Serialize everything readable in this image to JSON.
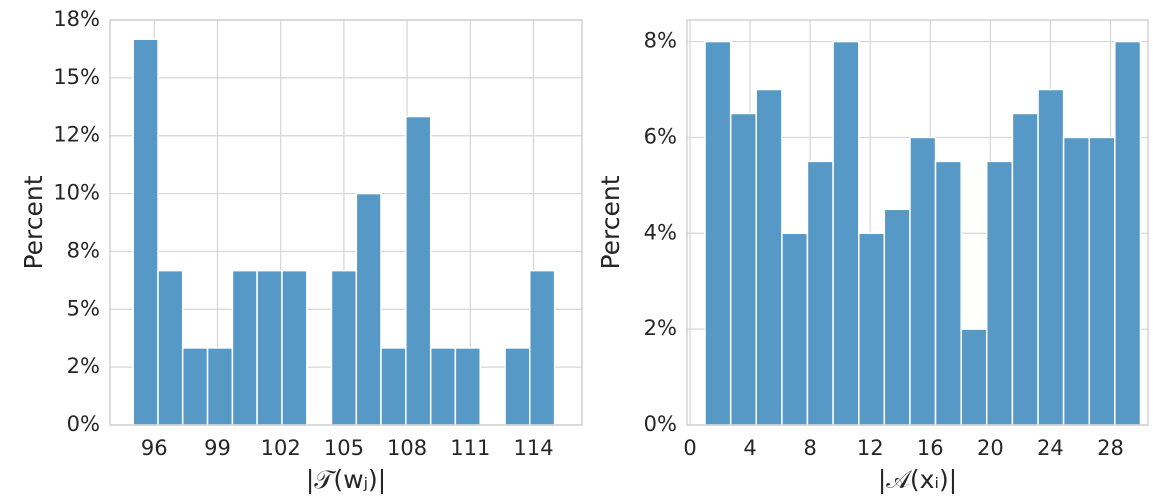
{
  "chart_data": [
    {
      "type": "histogram",
      "xlabel": "|𝒯(wⱼ)|",
      "ylabel": "Percent",
      "color": "#5799c6",
      "grid": true,
      "bins": [
        95,
        96.18,
        97.35,
        98.53,
        99.71,
        100.88,
        102.06,
        103.24,
        104.41,
        105.59,
        106.76,
        107.94,
        109.12,
        110.29,
        111.47,
        112.65,
        113.82,
        115
      ],
      "values": [
        16.67,
        6.67,
        3.33,
        3.33,
        6.67,
        6.67,
        6.67,
        0,
        6.67,
        10,
        3.33,
        13.33,
        3.33,
        3.33,
        0,
        3.33,
        6.67
      ],
      "xlim": [
        93.9,
        116.3
      ],
      "xticks": [
        96,
        99,
        102,
        105,
        108,
        111,
        114
      ],
      "ylim": [
        0,
        17.5
      ],
      "yticks": [
        {
          "value": 0,
          "label": "0%"
        },
        {
          "value": 2.5,
          "label": "2%"
        },
        {
          "value": 5,
          "label": "5%"
        },
        {
          "value": 7.5,
          "label": "8%"
        },
        {
          "value": 10,
          "label": "10%"
        },
        {
          "value": 12.5,
          "label": "12%"
        },
        {
          "value": 15,
          "label": "15%"
        },
        {
          "value": 17.5,
          "label": "18%"
        }
      ]
    },
    {
      "type": "histogram",
      "xlabel": "|𝒜(xᵢ)|",
      "ylabel": "Percent",
      "color": "#5799c6",
      "grid": true,
      "bins": [
        1,
        2.71,
        4.41,
        6.12,
        7.82,
        9.53,
        11.24,
        12.94,
        14.65,
        16.35,
        18.06,
        19.76,
        21.47,
        23.18,
        24.88,
        26.59,
        28.29,
        30
      ],
      "values": [
        8,
        6.5,
        7,
        4,
        5.5,
        8,
        4,
        4.5,
        6,
        5.5,
        2,
        5.5,
        6.5,
        7,
        6,
        6,
        8
      ],
      "xlim": [
        -0.2,
        30.5
      ],
      "xticks": [
        0,
        4,
        8,
        12,
        16,
        20,
        24,
        28
      ],
      "ylim": [
        0,
        8.45
      ],
      "yticks": [
        {
          "value": 0,
          "label": "0%"
        },
        {
          "value": 2,
          "label": "2%"
        },
        {
          "value": 4,
          "label": "4%"
        },
        {
          "value": 6,
          "label": "6%"
        },
        {
          "value": 8,
          "label": "8%"
        }
      ]
    }
  ]
}
